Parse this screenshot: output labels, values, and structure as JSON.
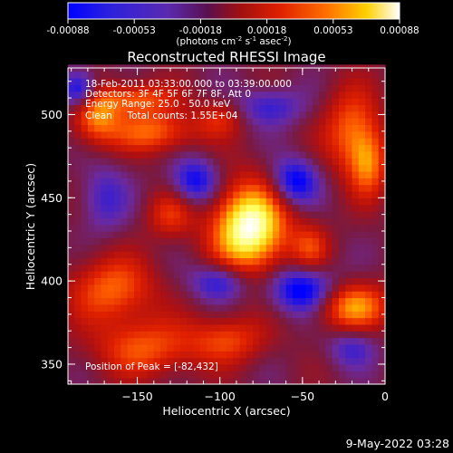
{
  "colorbar": {
    "ticks": [
      "-0.00088",
      "-0.00053",
      "-0.00018",
      "0.00018",
      "0.00053",
      "0.00088"
    ],
    "unit": "(photons cm",
    "unit_sup1": "-2",
    "unit_mid": " s",
    "unit_sup2": "-1",
    "unit_mid2": " asec",
    "unit_sup3": "-2",
    "unit_end": ")"
  },
  "chart_data": {
    "type": "heatmap",
    "title": "Reconstructed RHESSI Image",
    "xlabel": "Heliocentric X (arcsec)",
    "ylabel": "Heliocentric Y (arcsec)",
    "xlim": [
      -192,
      0
    ],
    "ylim": [
      338,
      528
    ],
    "x_ticks": [
      -150,
      -100,
      -50,
      0
    ],
    "y_ticks": [
      350,
      400,
      450,
      500
    ],
    "colormap": [
      "#0000ff",
      "#3a1fd0",
      "#6a2aa0",
      "#7a1a40",
      "#b01010",
      "#e02000",
      "#ff6000",
      "#ffc000",
      "#ffff60",
      "#ffffff"
    ],
    "annotations": [
      "18-Feb-2011 03:33:00.000 to 03:39:00.000",
      "Detectors: 3F 4F 5F 6F 7F 8F, Att 0",
      "Energy Range: 25.0 - 50.0 keV",
      "Clean     Total counts: 1.55E+04"
    ],
    "peak_label": "Position of Peak = [-82,432]",
    "peak": [
      -82,
      432
    ],
    "blobs": [
      {
        "x": -82,
        "y": 432,
        "sx": 16,
        "sy": 19,
        "a": 1.0
      },
      {
        "x": -175,
        "y": 500,
        "sx": 10,
        "sy": 12,
        "a": 0.55
      },
      {
        "x": -140,
        "y": 490,
        "sx": 18,
        "sy": 9,
        "a": 0.5
      },
      {
        "x": -150,
        "y": 510,
        "sx": 16,
        "sy": 7,
        "a": 0.45
      },
      {
        "x": -20,
        "y": 490,
        "sx": 12,
        "sy": 18,
        "a": 0.5
      },
      {
        "x": -10,
        "y": 470,
        "sx": 8,
        "sy": 14,
        "a": 0.45
      },
      {
        "x": -165,
        "y": 395,
        "sx": 18,
        "sy": 14,
        "a": 0.5
      },
      {
        "x": -130,
        "y": 440,
        "sx": 10,
        "sy": 10,
        "a": 0.35
      },
      {
        "x": -145,
        "y": 360,
        "sx": 22,
        "sy": 12,
        "a": 0.45
      },
      {
        "x": -95,
        "y": 365,
        "sx": 16,
        "sy": 10,
        "a": 0.4
      },
      {
        "x": -20,
        "y": 385,
        "sx": 16,
        "sy": 10,
        "a": 0.6
      },
      {
        "x": -45,
        "y": 420,
        "sx": 8,
        "sy": 10,
        "a": 0.35
      },
      {
        "x": -100,
        "y": 498,
        "sx": 10,
        "sy": 8,
        "a": 0.3
      },
      {
        "x": -55,
        "y": 460,
        "sx": 10,
        "sy": 10,
        "a": -0.55
      },
      {
        "x": -50,
        "y": 395,
        "sx": 14,
        "sy": 10,
        "a": -0.6
      },
      {
        "x": -115,
        "y": 460,
        "sx": 10,
        "sy": 10,
        "a": -0.5
      },
      {
        "x": -100,
        "y": 400,
        "sx": 12,
        "sy": 8,
        "a": -0.45
      },
      {
        "x": -185,
        "y": 515,
        "sx": 8,
        "sy": 8,
        "a": -0.6
      },
      {
        "x": -70,
        "y": 505,
        "sx": 14,
        "sy": 8,
        "a": -0.35
      },
      {
        "x": -170,
        "y": 450,
        "sx": 10,
        "sy": 14,
        "a": -0.3
      },
      {
        "x": -20,
        "y": 360,
        "sx": 10,
        "sy": 8,
        "a": -0.3
      }
    ]
  },
  "footer": {
    "date": "9-May-2022 03:28"
  }
}
